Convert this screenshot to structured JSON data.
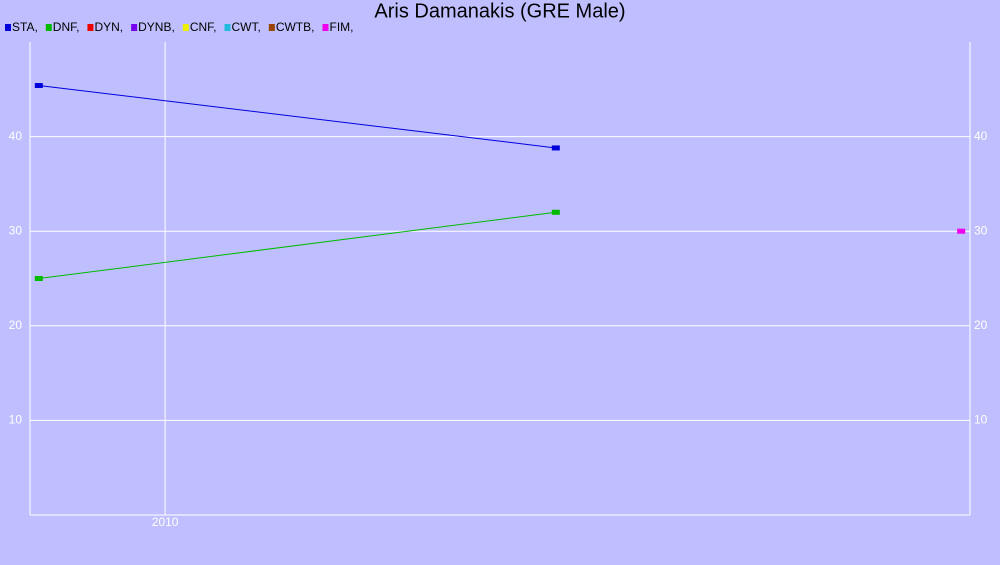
{
  "chart_data": {
    "type": "line",
    "title": "Aris Damanakis (GRE Male)",
    "series": [
      {
        "name": "STA,",
        "color": "#0000dd",
        "x": [
          2009.57,
          2011.33
        ],
        "values": [
          45.4,
          38.8
        ]
      },
      {
        "name": "DNF,",
        "color": "#00bb00",
        "x": [
          2009.57,
          2011.33
        ],
        "values": [
          25,
          32
        ]
      },
      {
        "name": "DYN,",
        "color": "#ee0000",
        "x": [],
        "values": []
      },
      {
        "name": "DYNB,",
        "color": "#7700ee",
        "x": [],
        "values": []
      },
      {
        "name": "CNF,",
        "color": "#eeee00",
        "x": [],
        "values": []
      },
      {
        "name": "CWT,",
        "color": "#22bbdd",
        "x": [],
        "values": []
      },
      {
        "name": "CWTB,",
        "color": "#994400",
        "x": [],
        "values": []
      },
      {
        "name": "FIM,",
        "color": "#ee00ee",
        "x": [
          2012.71
        ],
        "values": [
          30
        ]
      }
    ],
    "xlim": [
      2009.54,
      2012.74
    ],
    "xticks": [
      2010
    ],
    "ylim": [
      0,
      50
    ],
    "yticks": [
      10,
      20,
      30,
      40
    ],
    "grid": true
  }
}
